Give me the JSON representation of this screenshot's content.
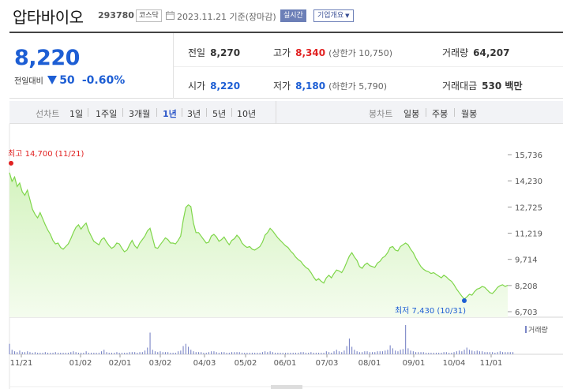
{
  "header": {
    "stock_name": "압타바이오",
    "stock_code": "293780",
    "market": "코스닥",
    "date_text": "2023.11.21 기준(장마감)",
    "realtime_label": "실시간",
    "company_info_label": "기업개요",
    "calendar_icon": "calendar-icon",
    "dropdown_icon": "chevron-down-icon"
  },
  "quote": {
    "price": "8,220",
    "change_label": "전일대비",
    "change_icon": "down-triangle-icon",
    "change_value": "50",
    "change_pct": "-0.60%",
    "prev_close_label": "전일",
    "prev_close": "8,270",
    "high_label": "고가",
    "high": "8,340",
    "upper_limit_text": "(상한가 10,750)",
    "volume_label": "거래량",
    "volume": "64,207",
    "open_label": "시가",
    "open": "8,220",
    "low_label": "저가",
    "low": "8,180",
    "lower_limit_text": "(하한가 5,790)",
    "amount_label": "거래대금",
    "amount": "530 백만",
    "colors": {
      "down": "#1d5ed4",
      "up": "#e12222"
    }
  },
  "tabs": {
    "line_chart_label": "선차트",
    "periods": [
      "1일",
      "1주일",
      "3개월",
      "1년",
      "3년",
      "5년",
      "10년"
    ],
    "selected_period": "1년",
    "candle_chart_label": "봉차트",
    "candles": [
      "일봉",
      "주봉",
      "월봉"
    ]
  },
  "chart_data": {
    "type": "area",
    "y_ticks": [
      "15,736",
      "14,230",
      "12,725",
      "11,219",
      "9,714",
      "8,208",
      "6,703"
    ],
    "ylim": [
      6703,
      15736
    ],
    "x_ticks": [
      "11/21",
      "01/02",
      "02/01",
      "03/02",
      "04/03",
      "05/02",
      "06/01",
      "07/03",
      "08/01",
      "09/01",
      "10/04",
      "11/01"
    ],
    "high_annotation": "최고 14,700 (11/21)",
    "low_annotation": "최저 7,430 (10/31)",
    "volume_legend": "거래량",
    "colors": {
      "line": "#7fd64a",
      "fill_top": "#d4f3bf",
      "fill_bottom": "#f4fcee",
      "volume": "#7b86c6",
      "high": "#e12222",
      "low": "#1d5ed4"
    },
    "price_series": [
      14700,
      14200,
      14450,
      13900,
      14100,
      13600,
      13400,
      13700,
      13150,
      12600,
      12300,
      12100,
      12400,
      12050,
      11700,
      11400,
      11150,
      10800,
      10600,
      10650,
      10400,
      10300,
      10450,
      10600,
      10900,
      11250,
      11550,
      11700,
      11450,
      11650,
      11800,
      11350,
      11050,
      10750,
      10650,
      10550,
      10850,
      10950,
      10700,
      10500,
      10350,
      10450,
      10650,
      10600,
      10350,
      10150,
      10250,
      10550,
      10800,
      10500,
      10350,
      10650,
      10850,
      11050,
      11350,
      11500,
      10950,
      10400,
      10350,
      10550,
      10750,
      10950,
      10850,
      10650,
      10650,
      10600,
      10800,
      11050,
      11950,
      12700,
      12850,
      12750,
      11800,
      11250,
      11250,
      11050,
      10850,
      10650,
      10700,
      11050,
      11150,
      11000,
      10750,
      10850,
      11000,
      10750,
      10550,
      10800,
      10900,
      11100,
      10950,
      10650,
      10500,
      10400,
      10450,
      10300,
      10250,
      10350,
      10450,
      10700,
      11100,
      11250,
      11500,
      11350,
      11150,
      10950,
      10800,
      10650,
      10500,
      10400,
      10200,
      10050,
      9850,
      9700,
      9600,
      9400,
      9250,
      9150,
      8950,
      8700,
      8500,
      8600,
      8450,
      8350,
      8650,
      8800,
      8650,
      8900,
      9100,
      9050,
      8950,
      9200,
      9550,
      9900,
      10100,
      9850,
      9650,
      9300,
      9200,
      9400,
      9500,
      9350,
      9300,
      9250,
      9500,
      9600,
      9800,
      9900,
      10100,
      10400,
      10450,
      10250,
      10200,
      10450,
      10550,
      10650,
      10550,
      10300,
      10100,
      9800,
      9550,
      9300,
      9150,
      9050,
      9000,
      8900,
      8950,
      8850,
      8750,
      8650,
      8800,
      8700,
      8550,
      8450,
      8250,
      8000,
      7800,
      7600,
      7430,
      7550,
      7700,
      7650,
      7850,
      8000,
      8050,
      8150,
      8100,
      7950,
      7800,
      7750,
      7900,
      8100,
      8200,
      8250,
      8150,
      8220
    ],
    "volume_series": [
      1.4,
      0.6,
      0.4,
      0.3,
      0.5,
      0.3,
      0.3,
      0.4,
      0.3,
      0.2,
      0.3,
      0.2,
      0.2,
      0.2,
      0.3,
      0.2,
      0.2,
      0.2,
      0.3,
      0.2,
      0.2,
      0.2,
      0.2,
      0.2,
      0.3,
      0.4,
      0.3,
      0.2,
      0.2,
      0.2,
      0.4,
      0.2,
      0.2,
      0.2,
      0.2,
      0.2,
      0.4,
      0.6,
      0.3,
      0.2,
      0.2,
      0.2,
      0.3,
      0.2,
      0.2,
      0.2,
      0.2,
      0.3,
      0.3,
      0.3,
      0.2,
      0.3,
      0.3,
      0.5,
      0.9,
      2.9,
      0.6,
      0.4,
      0.3,
      0.4,
      0.3,
      0.3,
      0.3,
      0.2,
      0.2,
      0.2,
      0.4,
      0.5,
      1.1,
      1.4,
      1.0,
      0.6,
      0.4,
      0.3,
      0.3,
      0.3,
      0.2,
      0.2,
      0.3,
      0.4,
      0.4,
      0.3,
      0.2,
      0.3,
      0.3,
      0.2,
      0.2,
      0.3,
      0.3,
      0.3,
      0.3,
      0.2,
      0.2,
      0.2,
      0.2,
      0.2,
      0.2,
      0.2,
      0.2,
      0.3,
      0.4,
      0.3,
      0.4,
      0.3,
      0.2,
      0.2,
      0.2,
      0.2,
      0.2,
      0.2,
      0.2,
      0.2,
      0.2,
      0.2,
      0.3,
      0.3,
      0.2,
      0.2,
      0.3,
      0.2,
      0.2,
      0.2,
      0.2,
      0.2,
      0.4,
      0.3,
      0.2,
      0.4,
      0.6,
      0.4,
      0.3,
      0.5,
      1.1,
      2.1,
      1.0,
      0.6,
      0.4,
      0.3,
      0.3,
      0.4,
      0.4,
      0.3,
      0.3,
      0.3,
      0.4,
      0.4,
      0.4,
      0.5,
      0.6,
      1.2,
      0.8,
      0.5,
      0.4,
      0.6,
      0.7,
      3.9,
      0.8,
      0.5,
      0.4,
      0.3,
      0.3,
      0.3,
      0.3,
      0.2,
      0.2,
      0.2,
      0.2,
      0.2,
      0.2,
      0.2,
      0.3,
      0.3,
      0.2,
      0.2,
      0.3,
      0.4,
      0.5,
      0.4,
      0.6,
      0.9,
      0.6,
      0.5,
      0.4,
      0.5,
      0.4,
      0.4,
      0.3,
      0.3,
      0.3,
      0.3,
      0.2,
      0.3,
      0.4,
      0.3,
      0.3,
      0.3,
      0.3,
      0.3
    ]
  }
}
